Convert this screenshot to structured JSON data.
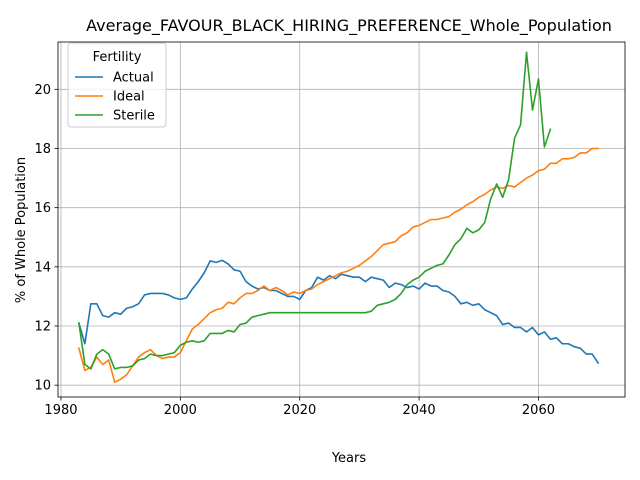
{
  "chart_data": {
    "type": "line",
    "title": "Average_FAVOUR_BLACK_HIRING_PREFERENCE_Whole_Population",
    "xlabel": "Years",
    "ylabel": "% of Whole Population",
    "xlim": [
      1979.5,
      2074.5
    ],
    "ylim": [
      9.6,
      21.6
    ],
    "xticks": [
      1980,
      2000,
      2020,
      2040,
      2060
    ],
    "xtick_labels": [
      "1980",
      "2000",
      "2020",
      "2040",
      "2060"
    ],
    "yticks": [
      10,
      12,
      14,
      16,
      18,
      20
    ],
    "ytick_labels": [
      "10",
      "12",
      "14",
      "16",
      "18",
      "20"
    ],
    "grid": true,
    "legend": {
      "title": "Fertility",
      "placement": "upper-left"
    },
    "series": [
      {
        "name": "Actual",
        "color": "#1f77b4",
        "x": [
          1983,
          1984,
          1985,
          1986,
          1987,
          1988,
          1989,
          1990,
          1991,
          1992,
          1993,
          1994,
          1995,
          1996,
          1997,
          1998,
          1999,
          2000,
          2001,
          2002,
          2003,
          2004,
          2005,
          2006,
          2007,
          2008,
          2009,
          2010,
          2011,
          2012,
          2013,
          2014,
          2015,
          2016,
          2017,
          2018,
          2019,
          2020,
          2021,
          2022,
          2023,
          2024,
          2025,
          2026,
          2027,
          2028,
          2029,
          2030,
          2031,
          2032,
          2033,
          2034,
          2035,
          2036,
          2037,
          2038,
          2039,
          2040,
          2041,
          2042,
          2043,
          2044,
          2045,
          2046,
          2047,
          2048,
          2049,
          2050,
          2051,
          2052,
          2053,
          2054,
          2055,
          2056,
          2057,
          2058,
          2059,
          2060,
          2061,
          2062,
          2063,
          2064,
          2065,
          2066,
          2067,
          2068,
          2069,
          2070
        ],
        "values": [
          12.1,
          11.4,
          12.75,
          12.75,
          12.35,
          12.3,
          12.45,
          12.4,
          12.6,
          12.65,
          12.75,
          13.05,
          13.1,
          13.1,
          13.1,
          13.05,
          12.95,
          12.9,
          12.95,
          13.25,
          13.5,
          13.8,
          14.2,
          14.15,
          14.22,
          14.1,
          13.9,
          13.85,
          13.5,
          13.35,
          13.25,
          13.3,
          13.2,
          13.2,
          13.1,
          13.0,
          13.0,
          12.9,
          13.2,
          13.3,
          13.65,
          13.55,
          13.7,
          13.6,
          13.75,
          13.7,
          13.65,
          13.65,
          13.5,
          13.65,
          13.6,
          13.55,
          13.3,
          13.45,
          13.4,
          13.3,
          13.35,
          13.25,
          13.45,
          13.35,
          13.35,
          13.2,
          13.15,
          13.0,
          12.75,
          12.8,
          12.7,
          12.75,
          12.55,
          12.45,
          12.35,
          12.05,
          12.1,
          11.95,
          11.95,
          11.8,
          11.95,
          11.7,
          11.8,
          11.55,
          11.6,
          11.4,
          11.4,
          11.3,
          11.25,
          11.05,
          11.05,
          10.75
        ]
      },
      {
        "name": "Ideal",
        "color": "#ff7f0e",
        "x": [
          1983,
          1984,
          1985,
          1986,
          1987,
          1988,
          1989,
          1990,
          1991,
          1992,
          1993,
          1994,
          1995,
          1996,
          1997,
          1998,
          1999,
          2000,
          2001,
          2002,
          2003,
          2004,
          2005,
          2006,
          2007,
          2008,
          2009,
          2010,
          2011,
          2012,
          2013,
          2014,
          2015,
          2016,
          2017,
          2018,
          2019,
          2020,
          2021,
          2022,
          2023,
          2024,
          2025,
          2026,
          2027,
          2028,
          2029,
          2030,
          2031,
          2032,
          2033,
          2034,
          2035,
          2036,
          2037,
          2038,
          2039,
          2040,
          2041,
          2042,
          2043,
          2044,
          2045,
          2046,
          2047,
          2048,
          2049,
          2050,
          2051,
          2052,
          2053,
          2054,
          2055,
          2056,
          2057,
          2058,
          2059,
          2060,
          2061,
          2062,
          2063,
          2064,
          2065,
          2066,
          2067,
          2068,
          2069,
          2070
        ],
        "values": [
          11.25,
          10.5,
          10.6,
          10.95,
          10.7,
          10.85,
          10.1,
          10.2,
          10.35,
          10.65,
          10.95,
          11.1,
          11.2,
          11.0,
          10.9,
          10.95,
          10.95,
          11.1,
          11.5,
          11.9,
          12.05,
          12.25,
          12.45,
          12.55,
          12.6,
          12.8,
          12.75,
          12.95,
          13.1,
          13.1,
          13.2,
          13.35,
          13.2,
          13.3,
          13.2,
          13.05,
          13.15,
          13.1,
          13.2,
          13.25,
          13.4,
          13.5,
          13.6,
          13.7,
          13.8,
          13.85,
          13.95,
          14.05,
          14.2,
          14.35,
          14.55,
          14.75,
          14.8,
          14.85,
          15.05,
          15.15,
          15.35,
          15.4,
          15.5,
          15.6,
          15.6,
          15.65,
          15.7,
          15.85,
          15.95,
          16.1,
          16.2,
          16.35,
          16.45,
          16.6,
          16.7,
          16.65,
          16.75,
          16.7,
          16.85,
          17.0,
          17.1,
          17.25,
          17.3,
          17.5,
          17.5,
          17.65,
          17.65,
          17.7,
          17.85,
          17.85,
          18.0,
          18.0
        ]
      },
      {
        "name": "Sterile",
        "color": "#2ca02c",
        "x": [
          1983,
          1984,
          1985,
          1986,
          1987,
          1988,
          1989,
          1990,
          1991,
          1992,
          1993,
          1994,
          1995,
          1996,
          1997,
          1998,
          1999,
          2000,
          2001,
          2002,
          2003,
          2004,
          2005,
          2006,
          2007,
          2008,
          2009,
          2010,
          2011,
          2012,
          2013,
          2014,
          2015,
          2016,
          2017,
          2018,
          2019,
          2020,
          2021,
          2022,
          2023,
          2024,
          2025,
          2026,
          2027,
          2028,
          2029,
          2030,
          2031,
          2032,
          2033,
          2034,
          2035,
          2036,
          2037,
          2038,
          2039,
          2040,
          2041,
          2042,
          2043,
          2044,
          2045,
          2046,
          2047,
          2048,
          2049,
          2050,
          2051,
          2052,
          2053,
          2054,
          2055,
          2056,
          2057,
          2058,
          2059,
          2060,
          2061,
          2062
        ],
        "values": [
          12.1,
          10.7,
          10.55,
          11.05,
          11.2,
          11.05,
          10.55,
          10.6,
          10.6,
          10.65,
          10.85,
          10.9,
          11.05,
          11.0,
          11.0,
          11.05,
          11.1,
          11.35,
          11.45,
          11.5,
          11.45,
          11.5,
          11.75,
          11.75,
          11.75,
          11.85,
          11.8,
          12.05,
          12.1,
          12.3,
          12.35,
          12.4,
          12.45,
          12.45,
          12.45,
          12.45,
          12.45,
          12.45,
          12.45,
          12.45,
          12.45,
          12.45,
          12.45,
          12.45,
          12.45,
          12.45,
          12.45,
          12.45,
          12.45,
          12.5,
          12.7,
          12.75,
          12.8,
          12.9,
          13.1,
          13.4,
          13.55,
          13.65,
          13.85,
          13.95,
          14.05,
          14.1,
          14.4,
          14.75,
          14.95,
          15.3,
          15.15,
          15.25,
          15.5,
          16.3,
          16.8,
          16.35,
          16.95,
          18.35,
          18.8,
          21.25,
          19.3,
          20.35,
          18.05,
          18.65
        ]
      }
    ]
  }
}
